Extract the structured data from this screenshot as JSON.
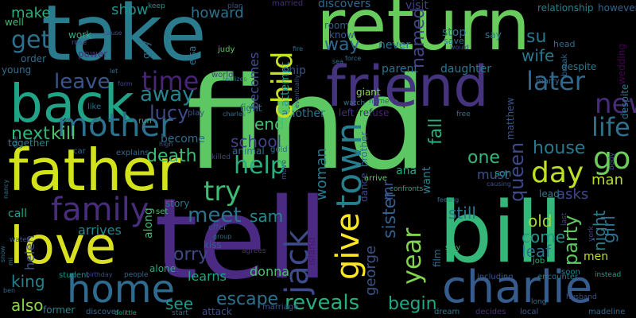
{
  "words": [
    {
      "text": "find",
      "color": "#5dc863"
    },
    {
      "text": "tell",
      "color": "#4a2a82"
    },
    {
      "text": "take",
      "color": "#2a7b8e"
    },
    {
      "text": "return",
      "color": "#67cc5c"
    },
    {
      "text": "bill",
      "color": "#35b779"
    },
    {
      "text": "father",
      "color": "#d2e21b"
    },
    {
      "text": "back",
      "color": "#20a386"
    },
    {
      "text": "friend",
      "color": "#46337e"
    },
    {
      "text": "love",
      "color": "#d9e022"
    },
    {
      "text": "charlie",
      "color": "#365c8d"
    },
    {
      "text": "home",
      "color": "#2f6b8e"
    },
    {
      "text": "family",
      "color": "#472d7b"
    },
    {
      "text": "mother",
      "color": "#2c728e"
    },
    {
      "text": "child",
      "color": "#c7e020"
    },
    {
      "text": "jack",
      "color": "#3e4a89"
    },
    {
      "text": "town",
      "color": "#277f8e"
    },
    {
      "text": "get",
      "color": "#2d708e"
    },
    {
      "text": "go",
      "color": "#6ccd5a"
    },
    {
      "text": "new",
      "color": "#472c7a"
    },
    {
      "text": "life",
      "color": "#2c728e"
    },
    {
      "text": "later",
      "color": "#31688e"
    },
    {
      "text": "time",
      "color": "#482475"
    },
    {
      "text": "day",
      "color": "#bddf26"
    },
    {
      "text": "help",
      "color": "#2ab07f"
    },
    {
      "text": "try",
      "color": "#3dbc74"
    },
    {
      "text": "give",
      "color": "#fde725"
    },
    {
      "text": "reveals",
      "color": "#26ad81"
    },
    {
      "text": "meet",
      "color": "#2c738e"
    },
    {
      "text": "away",
      "color": "#25858e"
    },
    {
      "text": "lucy",
      "color": "#3e4a89"
    },
    {
      "text": "leave",
      "color": "#39568c"
    },
    {
      "text": "year",
      "color": "#7fd34e"
    },
    {
      "text": "party",
      "color": "#5ec962"
    },
    {
      "text": "queen",
      "color": "#3e4989"
    },
    {
      "text": "house",
      "color": "#2a788e"
    },
    {
      "text": "death",
      "color": "#3aba76"
    },
    {
      "text": "kill",
      "color": "#50c46a"
    },
    {
      "text": "next",
      "color": "#31b57b"
    },
    {
      "text": "school",
      "color": "#414287"
    },
    {
      "text": "end",
      "color": "#48c16e"
    },
    {
      "text": "escape",
      "color": "#2c728e"
    },
    {
      "text": "begin",
      "color": "#22a884"
    },
    {
      "text": "become",
      "color": "#2e6d8e"
    },
    {
      "text": "see",
      "color": "#1f9a8a"
    },
    {
      "text": "king",
      "color": "#26818e"
    },
    {
      "text": "also",
      "color": "#8bd646"
    },
    {
      "text": "orry",
      "color": "#3f4788"
    },
    {
      "text": "sam",
      "color": "#23898e"
    },
    {
      "text": "still",
      "color": "#2a788e"
    },
    {
      "text": "come",
      "color": "#1f988b"
    },
    {
      "text": "leaf",
      "color": "#2d708e"
    },
    {
      "text": "old",
      "color": "#a0da39"
    },
    {
      "text": "one",
      "color": "#35b779"
    },
    {
      "text": "way",
      "color": "#31688e"
    },
    {
      "text": "named",
      "color": "#414487"
    },
    {
      "text": "make",
      "color": "#2ab07f"
    },
    {
      "text": "show",
      "color": "#20928c"
    },
    {
      "text": "howard",
      "color": "#2c728e"
    },
    {
      "text": "wife",
      "color": "#2a788e"
    },
    {
      "text": "man",
      "color": "#b5de2b"
    },
    {
      "text": "asks",
      "color": "#3f4788"
    },
    {
      "text": "night",
      "color": "#277f8e"
    },
    {
      "text": "girl",
      "color": "#2e6e8e"
    },
    {
      "text": "men",
      "color": "#c2df23"
    },
    {
      "text": "george",
      "color": "#3b528b"
    },
    {
      "text": "sister",
      "color": "#355f8d"
    },
    {
      "text": "mr",
      "color": "#3b518b"
    },
    {
      "text": "woman",
      "color": "#2a788e"
    },
    {
      "text": "fall",
      "color": "#2ab07f"
    },
    {
      "text": "want",
      "color": "#25838e"
    },
    {
      "text": "must",
      "color": "#39568c"
    },
    {
      "text": "ana",
      "color": "#22a884"
    },
    {
      "text": "learns",
      "color": "#20a486"
    },
    {
      "text": "donna",
      "color": "#4ac16d"
    },
    {
      "text": "arrives",
      "color": "#25848e"
    },
    {
      "text": "helen",
      "color": "#3b528b"
    },
    {
      "text": "call",
      "color": "#1fa188"
    },
    {
      "text": "su",
      "color": "#2a788e"
    },
    {
      "text": "attempt",
      "color": "#1fa188"
    },
    {
      "text": "becomes",
      "color": "#3b528b"
    },
    {
      "text": "daughter",
      "color": "#2a778e"
    },
    {
      "text": "parent",
      "color": "#2c728e"
    },
    {
      "text": "discovers",
      "color": "#31688e"
    },
    {
      "text": "visit",
      "color": "#424186"
    },
    {
      "text": "married",
      "color": "#472c7a"
    },
    {
      "text": "stop",
      "color": "#2d708e"
    },
    {
      "text": "save",
      "color": "#2d718e"
    },
    {
      "text": "say",
      "color": "#277f8e"
    },
    {
      "text": "never",
      "color": "#2c728e"
    },
    {
      "text": "know",
      "color": "#365d8d"
    },
    {
      "text": "room",
      "color": "#355e8d"
    },
    {
      "text": "ship",
      "color": "#3b518b"
    },
    {
      "text": "giant",
      "color": "#90d743"
    },
    {
      "text": "refuse",
      "color": "#482173"
    },
    {
      "text": "left",
      "color": "#46327e"
    },
    {
      "text": "another",
      "color": "#2d718e"
    },
    {
      "text": "fight",
      "color": "#2e6f8e"
    },
    {
      "text": "animal",
      "color": "#2e6e8e"
    },
    {
      "text": "son",
      "color": "#218f8d"
    },
    {
      "text": "lead",
      "color": "#2a788e"
    },
    {
      "text": "matthew",
      "color": "#39568c"
    },
    {
      "text": "relationship",
      "color": "#26828e"
    },
    {
      "text": "however",
      "color": "#31668e"
    },
    {
      "text": "break",
      "color": "#31678e"
    },
    {
      "text": "wedding",
      "color": "#440154"
    },
    {
      "text": "despite",
      "color": "#2a788e"
    },
    {
      "text": "head",
      "color": "#2e6e8e"
    },
    {
      "text": "would",
      "color": "#404588"
    },
    {
      "text": "power",
      "color": "#46307e"
    },
    {
      "text": "work",
      "color": "#29af7f"
    },
    {
      "text": "order",
      "color": "#2d708e"
    },
    {
      "text": "well",
      "color": "#42be71"
    },
    {
      "text": "young",
      "color": "#2d708e"
    },
    {
      "text": "elsa",
      "color": "#2c738e"
    },
    {
      "text": "judy",
      "color": "#5ec962"
    },
    {
      "text": "world",
      "color": "#433d84"
    },
    {
      "text": "plan",
      "color": "#3b528b"
    },
    {
      "text": "keep",
      "color": "#20928c"
    },
    {
      "text": "guy",
      "color": "#2d718e"
    },
    {
      "text": "together",
      "color": "#26828e"
    },
    {
      "text": "run",
      "color": "#26ad81"
    },
    {
      "text": "story",
      "color": "#2a788e"
    },
    {
      "text": "set",
      "color": "#46c06f"
    },
    {
      "text": "alone",
      "color": "#25ab82"
    },
    {
      "text": "kiss",
      "color": "#365c8d"
    },
    {
      "text": "offer",
      "color": "#3b528b"
    },
    {
      "text": "along",
      "color": "#3fbc73"
    },
    {
      "text": "island",
      "color": "#481a6c"
    },
    {
      "text": "dance",
      "color": "#3f4889"
    },
    {
      "text": "brother",
      "color": "#2f6c8e"
    },
    {
      "text": "film",
      "color": "#2c728e"
    },
    {
      "text": "finally",
      "color": "#1e9c89"
    },
    {
      "text": "walk",
      "color": "#472c7a"
    },
    {
      "text": "hospital",
      "color": "#20928c"
    },
    {
      "text": "heart",
      "color": "#424186"
    },
    {
      "text": "turn",
      "color": "#482475"
    },
    {
      "text": "stay",
      "color": "#3aba76"
    },
    {
      "text": "including",
      "color": "#38588c"
    },
    {
      "text": "encounter",
      "color": "#2a788e"
    },
    {
      "text": "job",
      "color": "#25ab82"
    },
    {
      "text": "soon",
      "color": "#26818e"
    },
    {
      "text": "instead",
      "color": "#1fa188"
    },
    {
      "text": "madeline",
      "color": "#31688e"
    },
    {
      "text": "husband",
      "color": "#3b528b"
    },
    {
      "text": "long",
      "color": "#2d708e"
    },
    {
      "text": "decides",
      "color": "#472f7d"
    },
    {
      "text": "local",
      "color": "#38598c"
    },
    {
      "text": "dream",
      "color": "#2b758e"
    },
    {
      "text": "marriage",
      "color": "#39568c"
    },
    {
      "text": "attack",
      "color": "#3b528b"
    },
    {
      "text": "start",
      "color": "#2f6c8e"
    },
    {
      "text": "discover",
      "color": "#31688e"
    },
    {
      "text": "dolittle",
      "color": "#22a884"
    },
    {
      "text": "former",
      "color": "#26828e"
    },
    {
      "text": "student",
      "color": "#228d8d"
    },
    {
      "text": "birthday",
      "color": "#3e4989"
    },
    {
      "text": "people",
      "color": "#31688e"
    },
    {
      "text": "body",
      "color": "#3b528b"
    },
    {
      "text": "last",
      "color": "#424086"
    },
    {
      "text": "york",
      "color": "#414287"
    },
    {
      "text": "feeling",
      "color": "#2d718e"
    },
    {
      "text": "causing",
      "color": "#3b528b"
    },
    {
      "text": "confronts",
      "color": "#21a685"
    },
    {
      "text": "arrive",
      "color": "#5ec962"
    },
    {
      "text": "gold",
      "color": "#2d708e"
    },
    {
      "text": "move",
      "color": "#3b528b"
    },
    {
      "text": "killed",
      "color": "#404688"
    },
    {
      "text": "agrees",
      "color": "#46327e"
    },
    {
      "text": "group",
      "color": "#2c738e"
    },
    {
      "text": "high",
      "color": "#3b528b"
    },
    {
      "text": "dae",
      "color": "#2c728e"
    },
    {
      "text": "car",
      "color": "#2f6c8e"
    },
    {
      "text": "explains",
      "color": "#31688e"
    },
    {
      "text": "play",
      "color": "#3b528b"
    },
    {
      "text": "like",
      "color": "#2e6e8e"
    },
    {
      "text": "form",
      "color": "#3f4788"
    },
    {
      "text": "let",
      "color": "#2c728e"
    },
    {
      "text": "rose",
      "color": "#3b528b"
    },
    {
      "text": "cause",
      "color": "#3b528b"
    },
    {
      "text": "fire",
      "color": "#2e6e8e"
    },
    {
      "text": "sea",
      "color": "#2c728e"
    },
    {
      "text": "force",
      "color": "#2c728e"
    },
    {
      "text": "realizes",
      "color": "#2e6e8e"
    },
    {
      "text": "marry",
      "color": "#31688e"
    },
    {
      "text": "watch",
      "color": "#2c728e"
    },
    {
      "text": "name",
      "color": "#3b528b"
    },
    {
      "text": "free",
      "color": "#2a788e"
    },
    {
      "text": "charles",
      "color": "#2e6e8e"
    },
    {
      "text": "eventually",
      "color": "#3b528b"
    },
    {
      "text": "nancy",
      "color": "#2c728e"
    },
    {
      "text": "water",
      "color": "#3b528b"
    },
    {
      "text": "mi",
      "color": "#2c728e"
    },
    {
      "text": "snow",
      "color": "#2c728e"
    },
    {
      "text": "ben",
      "color": "#31688e"
    }
  ]
}
